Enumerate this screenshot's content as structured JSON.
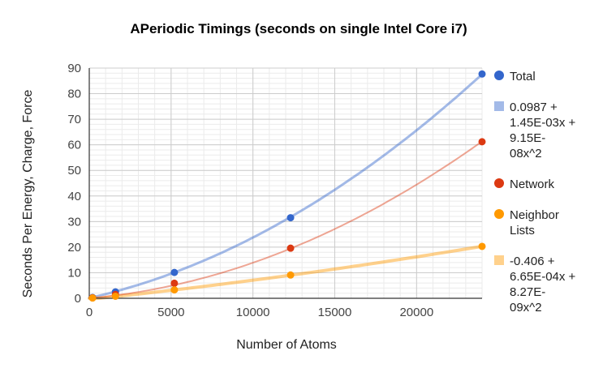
{
  "chart_data": {
    "type": "scatter",
    "title": "APeriodic Timings (seconds on single Intel Core i7)",
    "xlabel": "Number of Atoms",
    "ylabel": "Seconds Per Energy, Charge, Force",
    "xlim": [
      0,
      24000
    ],
    "ylim": [
      0,
      90
    ],
    "xticks": [
      0,
      5000,
      10000,
      15000,
      20000
    ],
    "xtick_labels": [
      "0",
      "5000",
      "10000",
      "15000",
      "20000"
    ],
    "yticks": [
      0,
      10,
      20,
      30,
      40,
      50,
      60,
      70,
      80,
      90
    ],
    "ytick_labels": [
      "0",
      "10",
      "20",
      "30",
      "40",
      "50",
      "60",
      "70",
      "80",
      "90"
    ],
    "grid": true,
    "minor_x_per_major": 5,
    "minor_y_per_major": 5,
    "legend_position": "right",
    "series": [
      {
        "name": "Total",
        "color": "#3366cc",
        "x": [
          200,
          1600,
          5200,
          12300,
          24000
        ],
        "y": [
          0.3,
          2.5,
          10.1,
          31.5,
          87.7
        ]
      },
      {
        "name": "Network",
        "color": "#dc3912",
        "x": [
          200,
          1600,
          5200,
          12300,
          24000
        ],
        "y": [
          0.2,
          1.5,
          5.9,
          19.6,
          61.2
        ]
      },
      {
        "name": "Neighbor Lists",
        "color": "#ff9900",
        "x": [
          200,
          1600,
          5200,
          12300,
          24000
        ],
        "y": [
          0.1,
          0.8,
          3.3,
          9.1,
          20.3
        ]
      }
    ],
    "trendlines": [
      {
        "label": "0.0987 + 1.45E-03x + 9.15E-08x^2",
        "color": "#3366cc",
        "opacity": 0.45,
        "width": 3,
        "type": "polynomial",
        "coefficients": [
          0.0987,
          0.00145,
          9.15e-08
        ]
      },
      {
        "label": "-0.406 + 6.65E-04x + 8.27E-09x^2",
        "color": "#ff9900",
        "opacity": 0.45,
        "width": 4,
        "type": "polynomial",
        "coefficients": [
          -0.406,
          0.000665,
          8.27e-09
        ]
      },
      {
        "label": "",
        "color": "#dc3912",
        "opacity": 0.45,
        "width": 2,
        "type": "polynomial",
        "coefficients": [
          0.05,
          0.00055,
          8.35e-08
        ]
      }
    ],
    "legend": [
      {
        "kind": "marker",
        "label": "Total",
        "lines": [
          "Total"
        ],
        "color": "#3366cc"
      },
      {
        "kind": "trendline",
        "label": "0.0987 + 1.45E-03x + 9.15E-08x^2",
        "lines": [
          "0.0987 +",
          "1.45E-03x +",
          "9.15E-",
          "08x^2"
        ],
        "color": "#3366cc"
      },
      {
        "kind": "marker",
        "label": "Network",
        "lines": [
          "Network"
        ],
        "color": "#dc3912"
      },
      {
        "kind": "marker",
        "label": "Neighbor Lists",
        "lines": [
          "Neighbor",
          "Lists"
        ],
        "color": "#ff9900"
      },
      {
        "kind": "trendline",
        "label": "-0.406 + 6.65E-04x + 8.27E-09x^2",
        "lines": [
          "-0.406 +",
          "6.65E-04x +",
          "8.27E-",
          "09x^2"
        ],
        "color": "#ff9900"
      }
    ]
  }
}
